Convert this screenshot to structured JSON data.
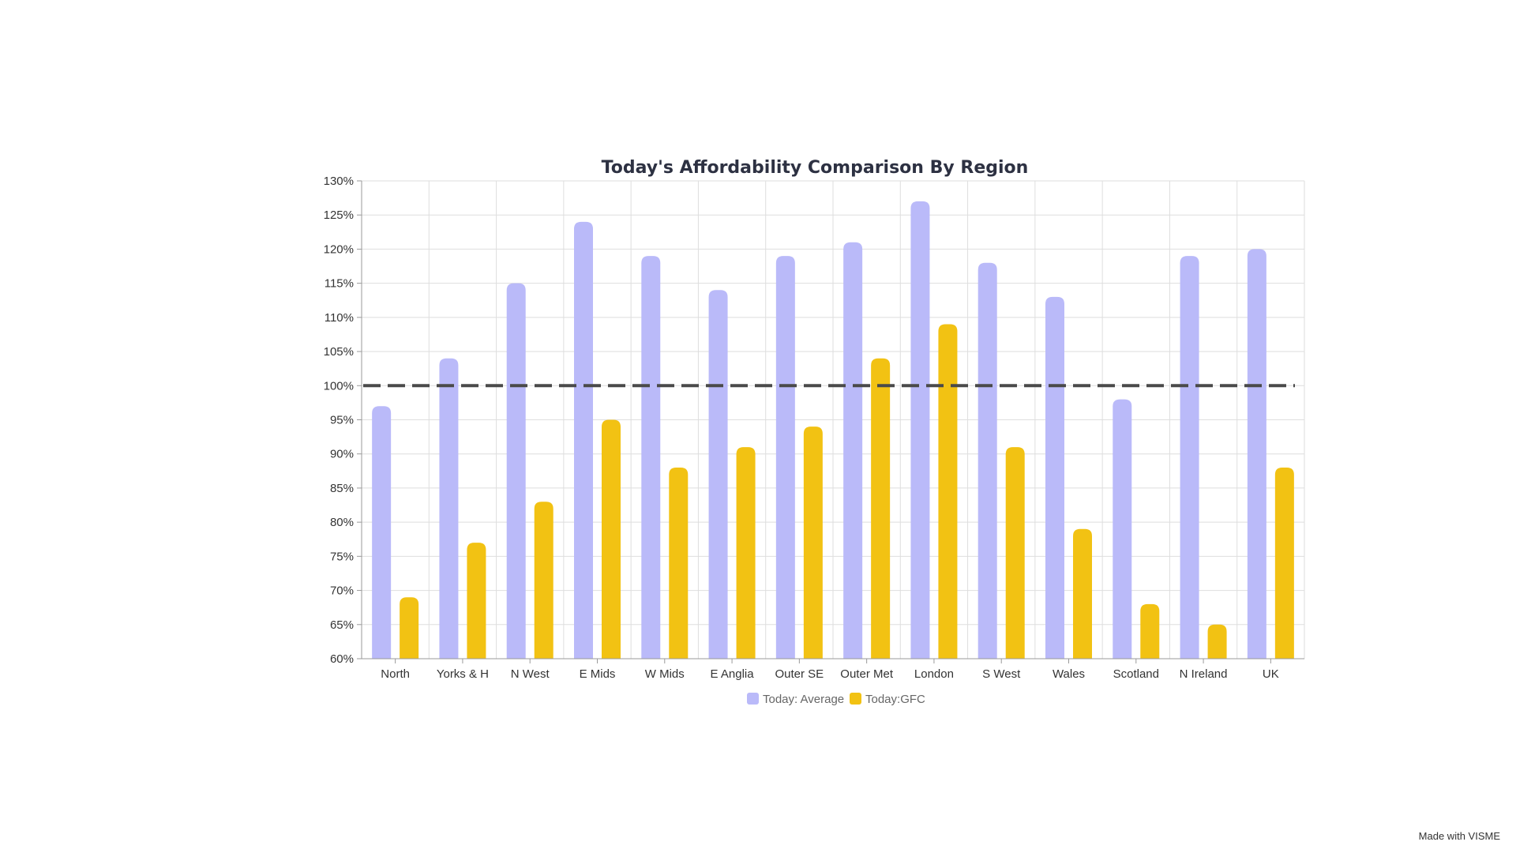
{
  "watermark": "Made with VISME",
  "chart_data": {
    "type": "bar",
    "title": "Today's Affordability Comparison By Region",
    "xlabel": "",
    "ylabel": "",
    "ylim": [
      60,
      130
    ],
    "y_ticks": [
      "60%",
      "65%",
      "70%",
      "75%",
      "80%",
      "85%",
      "90%",
      "95%",
      "100%",
      "105%",
      "110%",
      "115%",
      "120%",
      "125%",
      "130%"
    ],
    "grid": true,
    "legend_position": "bottom",
    "reference_line": {
      "value": 100,
      "style": "dashed",
      "color": "#4a4a4a"
    },
    "categories": [
      "North",
      "Yorks & H",
      "N West",
      "E Mids",
      "W Mids",
      "E Anglia",
      "Outer SE",
      "Outer Met",
      "London",
      "S West",
      "Wales",
      "Scotland",
      "N Ireland",
      "UK"
    ],
    "series": [
      {
        "name": "Today: Average",
        "color": "#babaf9",
        "values": [
          97,
          104,
          115,
          124,
          119,
          114,
          119,
          121,
          127,
          118,
          113,
          98,
          119,
          120
        ]
      },
      {
        "name": "Today:GFC",
        "color": "#f2c213",
        "values": [
          69,
          77,
          83,
          95,
          88,
          91,
          94,
          104,
          109,
          91,
          79,
          68,
          65,
          88
        ]
      }
    ]
  }
}
